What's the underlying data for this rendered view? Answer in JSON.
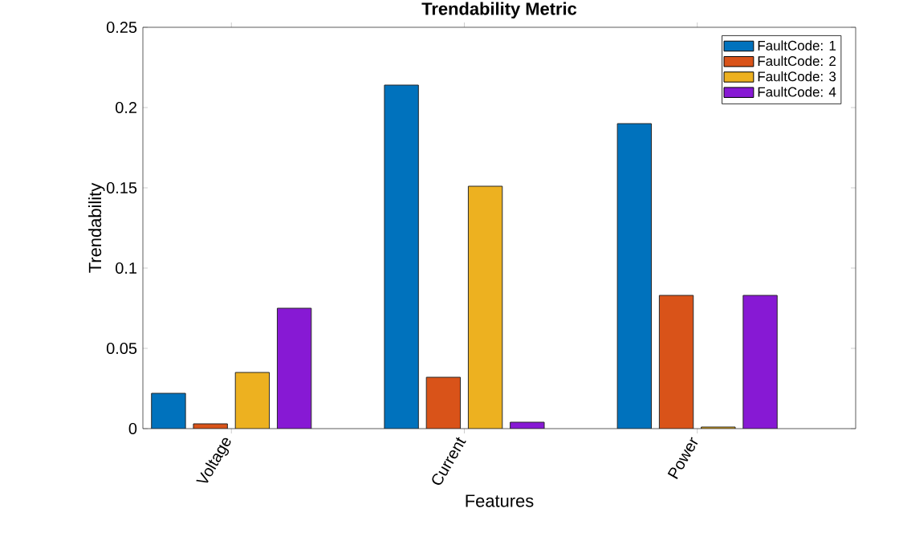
{
  "chart_data": {
    "type": "bar",
    "title": "Trendability Metric",
    "xlabel": "Features",
    "ylabel": "Trendability",
    "categories": [
      "Voltage",
      "Current",
      "Power"
    ],
    "series": [
      {
        "name": "FaultCode: 1",
        "color": "#0072bd",
        "values": [
          0.022,
          0.214,
          0.19
        ]
      },
      {
        "name": "FaultCode: 2",
        "color": "#d95319",
        "values": [
          0.003,
          0.032,
          0.083
        ]
      },
      {
        "name": "FaultCode: 3",
        "color": "#edb120",
        "values": [
          0.035,
          0.151,
          0.001
        ]
      },
      {
        "name": "FaultCode: 4",
        "color": "#8719d4",
        "values": [
          0.075,
          0.004,
          0.083
        ]
      }
    ],
    "ylim": [
      0,
      0.25
    ],
    "yticks": [
      0,
      0.05,
      0.1,
      0.15,
      0.2,
      0.25
    ],
    "legend": "top right",
    "grid": false
  }
}
